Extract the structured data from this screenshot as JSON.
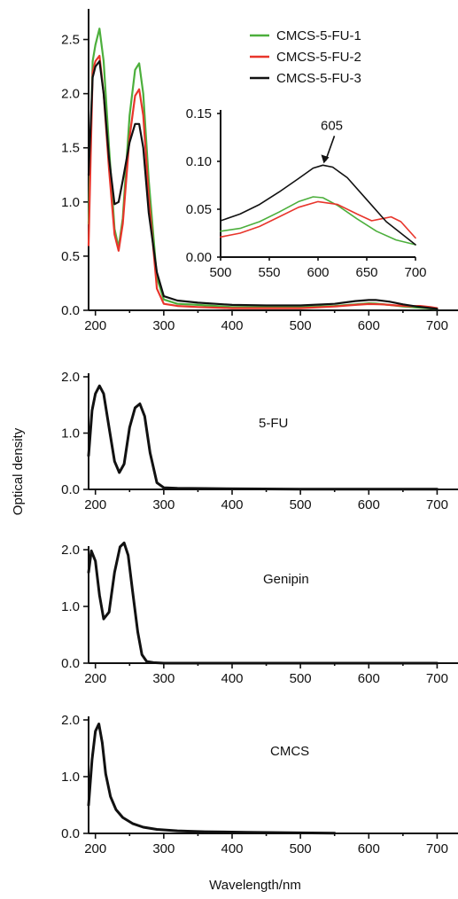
{
  "figure": {
    "ylabel": "Optical density",
    "xlabel": "Wavelength/nm"
  },
  "chart_data": [
    {
      "type": "line",
      "panel": "main",
      "xlim": [
        190,
        715
      ],
      "ylim": [
        0,
        2.75
      ],
      "xticks": [
        200,
        300,
        400,
        500,
        600,
        700
      ],
      "yticks": [
        0.0,
        0.5,
        1.0,
        1.5,
        2.0,
        2.5
      ],
      "ytick_labels": [
        "0.0",
        "0.5",
        "1.0",
        "1.5",
        "2.0",
        "2.5"
      ],
      "legend_position": "top-right",
      "series": [
        {
          "name": "CMCS-5-FU-1",
          "color": "#4caf3c",
          "x": [
            190,
            196,
            200,
            206,
            212,
            220,
            228,
            234,
            240,
            250,
            258,
            264,
            270,
            278,
            290,
            300,
            320,
            350,
            400,
            450,
            500,
            550,
            580,
            600,
            610,
            630,
            650,
            670,
            700
          ],
          "y": [
            0.8,
            2.3,
            2.45,
            2.6,
            2.3,
            1.5,
            0.75,
            0.58,
            0.85,
            1.8,
            2.22,
            2.28,
            2.0,
            1.2,
            0.3,
            0.1,
            0.06,
            0.05,
            0.03,
            0.03,
            0.03,
            0.04,
            0.055,
            0.065,
            0.062,
            0.05,
            0.035,
            0.025,
            0.013
          ]
        },
        {
          "name": "CMCS-5-FU-2",
          "color": "#e8352b",
          "x": [
            190,
            196,
            200,
            206,
            212,
            220,
            228,
            234,
            240,
            250,
            258,
            264,
            270,
            278,
            290,
            300,
            320,
            350,
            400,
            450,
            500,
            550,
            580,
            600,
            620,
            640,
            660,
            675,
            690,
            700
          ],
          "y": [
            0.6,
            2.2,
            2.3,
            2.35,
            2.0,
            1.3,
            0.7,
            0.55,
            0.8,
            1.6,
            1.98,
            2.04,
            1.8,
            1.05,
            0.2,
            0.06,
            0.04,
            0.03,
            0.02,
            0.02,
            0.02,
            0.035,
            0.05,
            0.058,
            0.055,
            0.045,
            0.038,
            0.04,
            0.03,
            0.02
          ]
        },
        {
          "name": "CMCS-5-FU-3",
          "color": "#111111",
          "x": [
            190,
            196,
            200,
            206,
            212,
            220,
            228,
            234,
            240,
            250,
            258,
            264,
            270,
            278,
            290,
            300,
            320,
            350,
            400,
            450,
            500,
            550,
            580,
            600,
            610,
            630,
            650,
            670,
            700
          ],
          "y": [
            1.25,
            2.15,
            2.25,
            2.3,
            2.0,
            1.4,
            0.98,
            1.0,
            1.2,
            1.55,
            1.72,
            1.72,
            1.5,
            0.9,
            0.35,
            0.13,
            0.09,
            0.07,
            0.05,
            0.045,
            0.045,
            0.06,
            0.085,
            0.095,
            0.096,
            0.08,
            0.055,
            0.035,
            0.013
          ]
        }
      ]
    },
    {
      "type": "line",
      "panel": "inset",
      "xlim": [
        500,
        700
      ],
      "ylim": [
        0,
        0.15
      ],
      "xticks": [
        500,
        550,
        600,
        650,
        700
      ],
      "yticks": [
        0.0,
        0.05,
        0.1,
        0.15
      ],
      "ytick_labels": [
        "0.00",
        "0.05",
        "0.10",
        "0.15"
      ],
      "annotation": {
        "text": "605",
        "x": 605,
        "y": 0.096
      },
      "series": [
        {
          "color": "#4caf3c",
          "x": [
            500,
            520,
            540,
            560,
            580,
            595,
            605,
            620,
            640,
            660,
            680,
            700
          ],
          "y": [
            0.027,
            0.03,
            0.037,
            0.047,
            0.058,
            0.063,
            0.062,
            0.054,
            0.04,
            0.027,
            0.018,
            0.013
          ]
        },
        {
          "color": "#e8352b",
          "x": [
            500,
            520,
            540,
            560,
            580,
            600,
            620,
            640,
            655,
            665,
            675,
            685,
            700
          ],
          "y": [
            0.021,
            0.025,
            0.032,
            0.042,
            0.052,
            0.058,
            0.055,
            0.045,
            0.038,
            0.04,
            0.042,
            0.037,
            0.02
          ]
        },
        {
          "color": "#111111",
          "x": [
            500,
            520,
            540,
            560,
            580,
            595,
            605,
            615,
            630,
            650,
            670,
            700
          ],
          "y": [
            0.038,
            0.045,
            0.055,
            0.068,
            0.082,
            0.093,
            0.096,
            0.094,
            0.083,
            0.06,
            0.037,
            0.013
          ]
        }
      ]
    },
    {
      "type": "line",
      "panel": "5-FU",
      "label": "5-FU",
      "xlim": [
        190,
        715
      ],
      "ylim": [
        0,
        2.0
      ],
      "xticks": [
        200,
        300,
        400,
        500,
        600,
        700
      ],
      "yticks": [
        0.0,
        1.0,
        2.0
      ],
      "ytick_labels": [
        "0.0",
        "1.0",
        "2.0"
      ],
      "series": [
        {
          "color": "#111111",
          "x": [
            190,
            195,
            200,
            206,
            212,
            220,
            228,
            235,
            242,
            250,
            258,
            265,
            272,
            280,
            290,
            300,
            320,
            360,
            420,
            500,
            600,
            700
          ],
          "y": [
            0.6,
            1.4,
            1.7,
            1.84,
            1.7,
            1.1,
            0.5,
            0.3,
            0.45,
            1.1,
            1.45,
            1.52,
            1.3,
            0.65,
            0.12,
            0.03,
            0.02,
            0.015,
            0.01,
            0.005,
            0.005,
            0.005
          ]
        }
      ]
    },
    {
      "type": "line",
      "panel": "Genipin",
      "label": "Genipin",
      "xlim": [
        190,
        715
      ],
      "ylim": [
        0,
        2.0
      ],
      "xticks": [
        200,
        300,
        400,
        500,
        600,
        700
      ],
      "yticks": [
        0.0,
        1.0,
        2.0
      ],
      "ytick_labels": [
        "0.0",
        "1.0",
        "2.0"
      ],
      "series": [
        {
          "color": "#111111",
          "x": [
            190,
            194,
            200,
            206,
            212,
            220,
            228,
            236,
            242,
            248,
            254,
            262,
            268,
            275,
            285,
            300,
            400,
            700
          ],
          "y": [
            1.6,
            1.98,
            1.8,
            1.2,
            0.78,
            0.9,
            1.6,
            2.05,
            2.12,
            1.9,
            1.3,
            0.55,
            0.15,
            0.03,
            0.01,
            0.0,
            0.0,
            0.0
          ]
        }
      ]
    },
    {
      "type": "line",
      "panel": "CMCS",
      "label": "CMCS",
      "xlim": [
        190,
        715
      ],
      "ylim": [
        0,
        2.0
      ],
      "xticks": [
        200,
        300,
        400,
        500,
        600,
        700
      ],
      "yticks": [
        0.0,
        1.0,
        2.0
      ],
      "ytick_labels": [
        "0.0",
        "1.0",
        "2.0"
      ],
      "series": [
        {
          "color": "#111111",
          "x": [
            190,
            195,
            200,
            205,
            210,
            215,
            222,
            230,
            240,
            255,
            270,
            290,
            320,
            360,
            420,
            500,
            550
          ],
          "y": [
            0.5,
            1.3,
            1.8,
            1.93,
            1.6,
            1.05,
            0.65,
            0.42,
            0.28,
            0.17,
            0.11,
            0.07,
            0.045,
            0.03,
            0.02,
            0.01,
            0.005
          ]
        }
      ]
    }
  ]
}
